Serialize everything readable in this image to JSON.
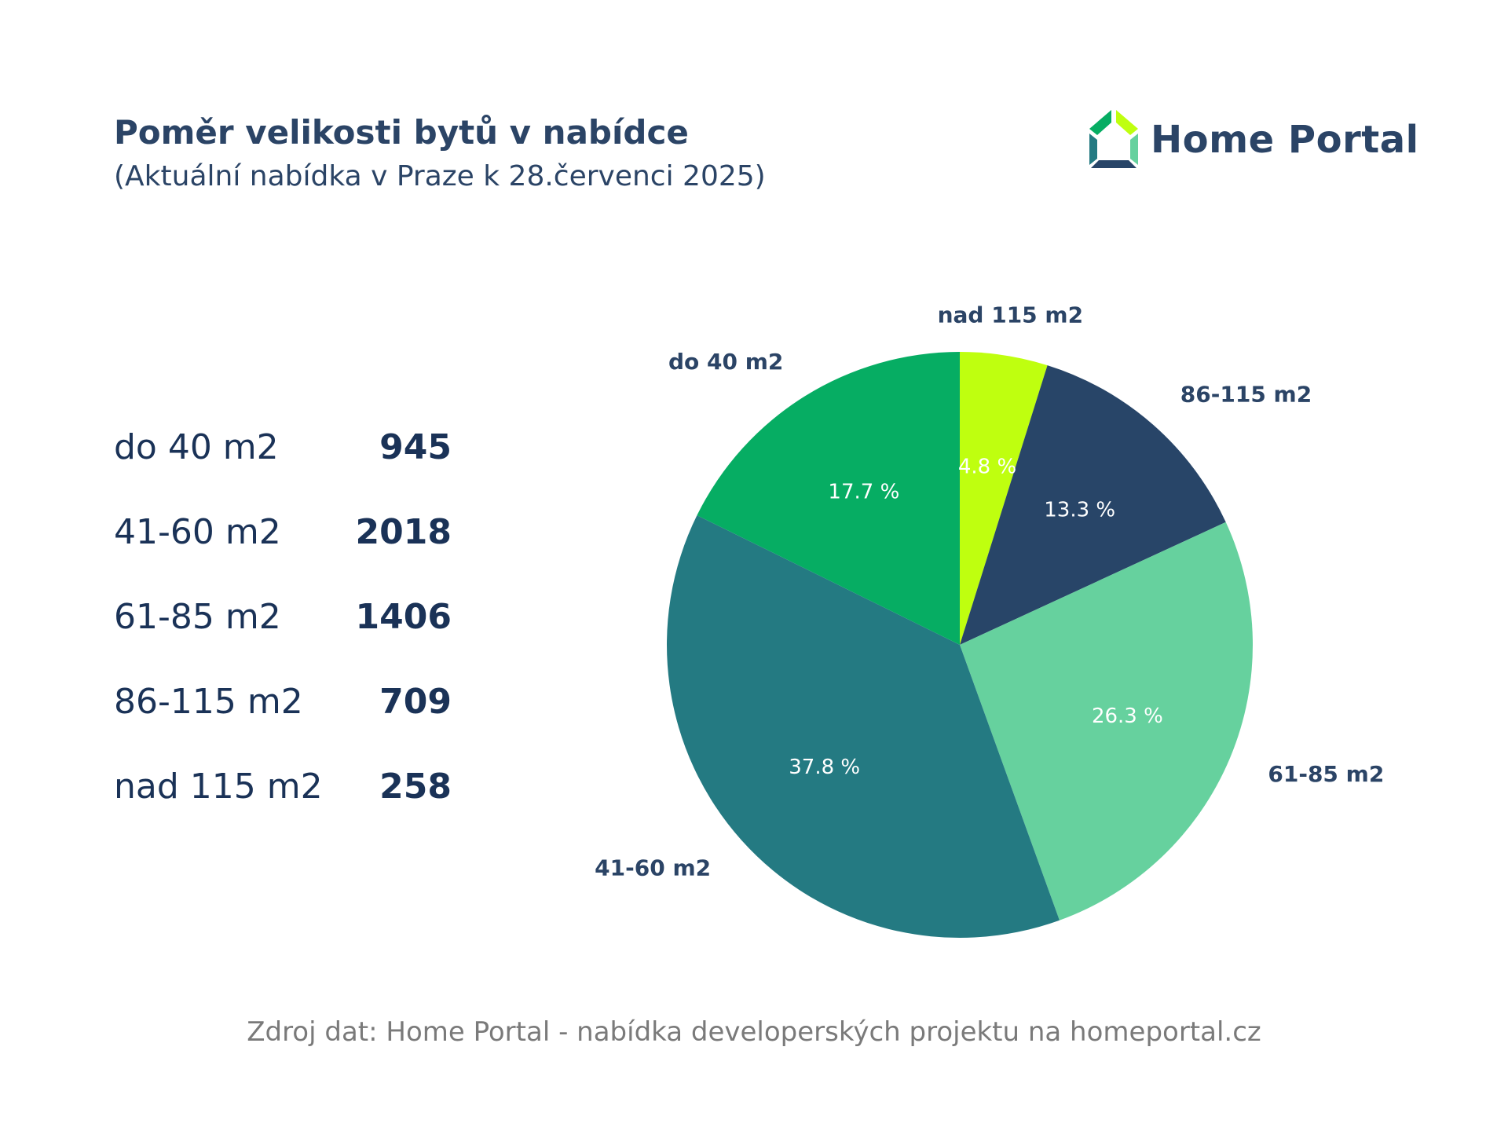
{
  "header": {
    "title": "Poměr velikosti bytů v nabídce",
    "subtitle": "(Aktuální nabídka v Praze k 28.červenci 2025)"
  },
  "logo": {
    "text": "Home Portal"
  },
  "table": [
    {
      "label": "do 40 m2",
      "value": "945"
    },
    {
      "label": "41-60 m2",
      "value": "2018"
    },
    {
      "label": "61-85 m2",
      "value": "1406"
    },
    {
      "label": "86-115 m2",
      "value": "709"
    },
    {
      "label": "nad 115 m2",
      "value": "258"
    }
  ],
  "chart_data": {
    "type": "pie",
    "title": "Poměr velikosti bytů v nabídce",
    "start": "top, clockwise",
    "slices": [
      {
        "label": "nad 115 m2",
        "value": 258,
        "percent_label": "4.8 %",
        "color": "#bfff0f"
      },
      {
        "label": "86-115 m2",
        "value": 709,
        "percent_label": "13.3 %",
        "color": "#284568"
      },
      {
        "label": "61-85 m2",
        "value": 1406,
        "percent_label": "26.3 %",
        "color": "#66d19e"
      },
      {
        "label": "41-60 m2",
        "value": 2018,
        "percent_label": "37.8 %",
        "color": "#247a82"
      },
      {
        "label": "do 40 m2",
        "value": 945,
        "percent_label": "17.7 %",
        "color": "#06ad63"
      }
    ]
  },
  "footer": {
    "source": "Zdroj dat: Home Portal - nabídka developerských projektu na homeportal.cz"
  }
}
